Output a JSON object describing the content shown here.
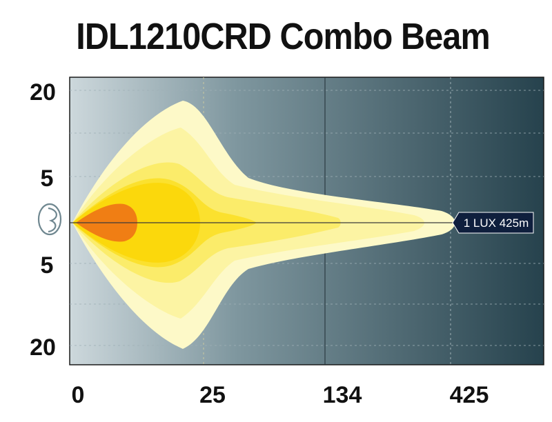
{
  "chart_data": {
    "type": "area",
    "title": "IDL1210CRD Combo Beam",
    "x_ticks": [
      "0",
      "25",
      "134",
      "425"
    ],
    "y_ticks": [
      "20",
      "5",
      "5",
      "20"
    ],
    "annotation": "1 LUX 425m",
    "beam_zones": [
      {
        "level": 1,
        "color": "#fdf9c8"
      },
      {
        "level": 2,
        "color": "#fcf4a3"
      },
      {
        "level": 3,
        "color": "#fbec6a"
      },
      {
        "level": 4,
        "color": "#fbe12e"
      },
      {
        "level": 5,
        "color": "#fbd80c"
      },
      {
        "level": 6,
        "color": "#f07e14"
      }
    ],
    "grid": true,
    "background_gradient": [
      "#cdd8dc",
      "#26424d"
    ]
  }
}
